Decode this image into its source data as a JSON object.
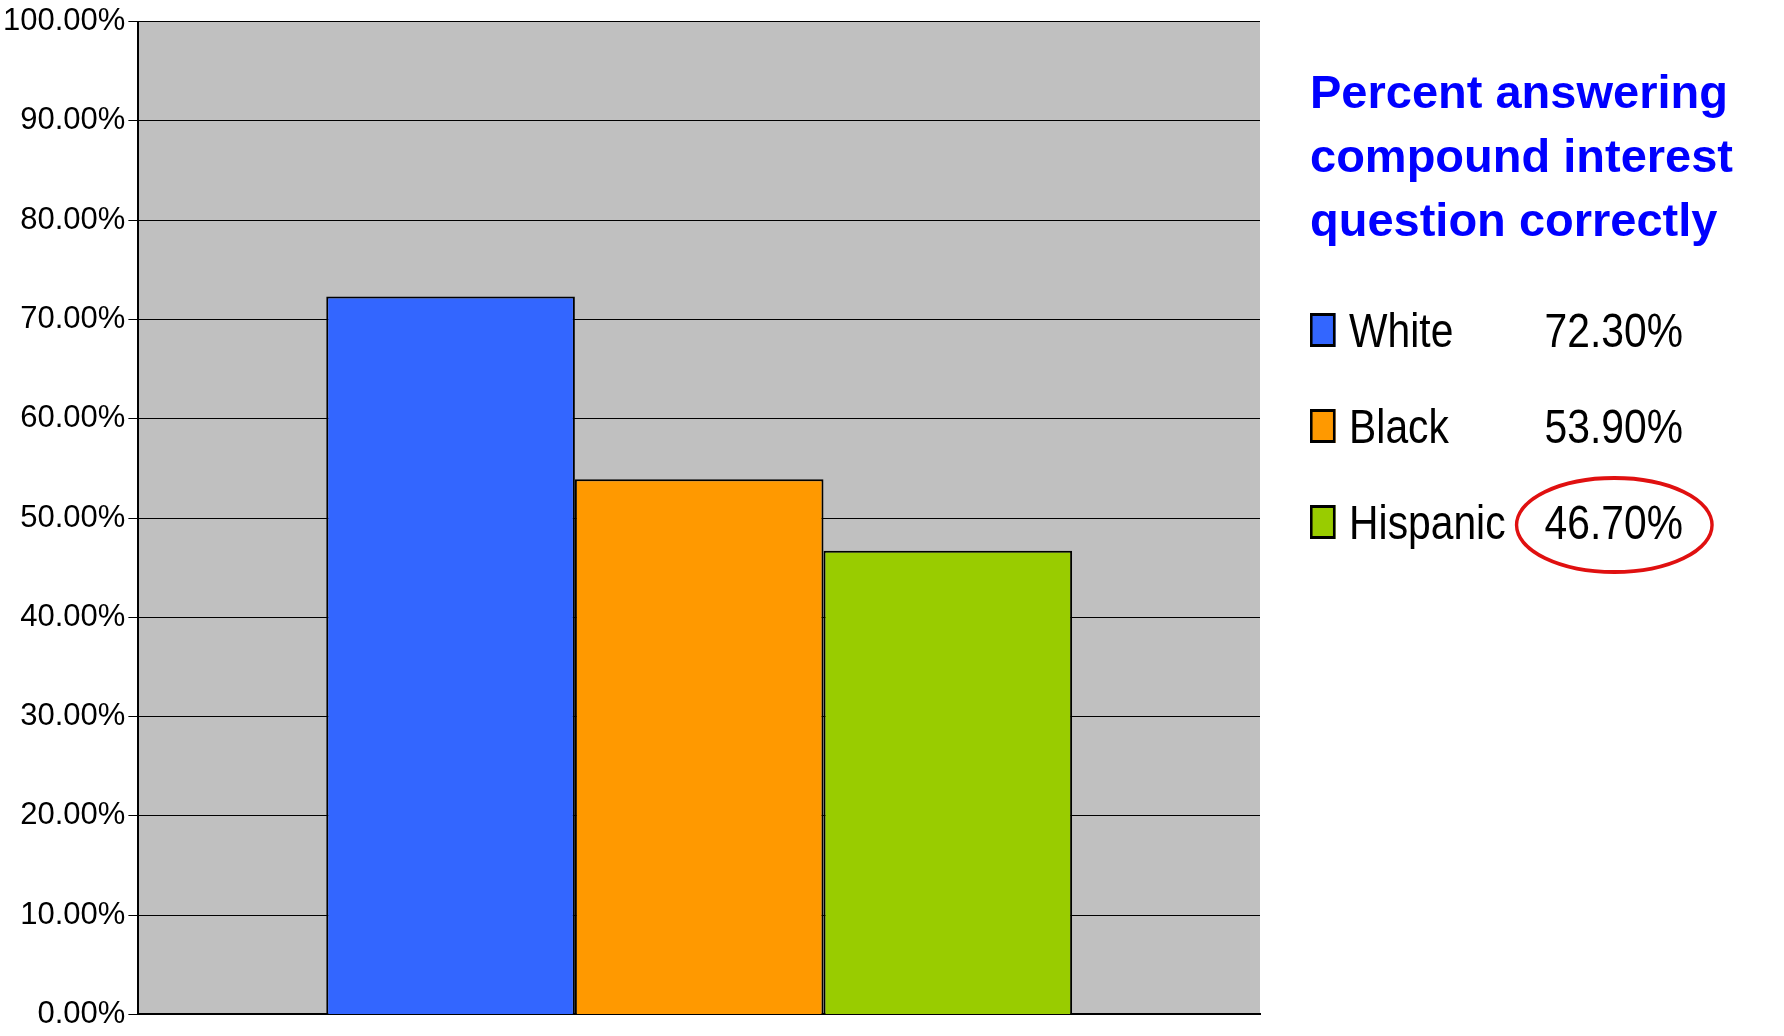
{
  "chart_data": {
    "type": "bar",
    "title": "Percent answering compound interest question correctly",
    "categories": [
      null
    ],
    "series": [
      {
        "name": "White",
        "color": "#3366ff",
        "values": [
          72.3
        ]
      },
      {
        "name": "Black",
        "color": "#ff9900",
        "values": [
          53.9
        ]
      },
      {
        "name": "Hispanic",
        "color": "#99cc00",
        "values": [
          46.7
        ]
      }
    ],
    "annotations": [
      "72.30%",
      "53.90%",
      "46.70%"
    ],
    "ylim": [
      0,
      100
    ],
    "yticks": [
      {
        "value": 0,
        "label": "0.00%"
      },
      {
        "value": 10,
        "label": "10.00%"
      },
      {
        "value": 20,
        "label": "20.00%"
      },
      {
        "value": 30,
        "label": "30.00%"
      },
      {
        "value": 40,
        "label": "40.00%"
      },
      {
        "value": 50,
        "label": "50.00%"
      },
      {
        "value": 60,
        "label": "60.00%"
      },
      {
        "value": 70,
        "label": "70.00%"
      },
      {
        "value": 80,
        "label": "80.00%"
      },
      {
        "value": 90,
        "label": "90.00%"
      },
      {
        "value": 100,
        "label": "100.00%"
      }
    ],
    "grid": "y",
    "legend": "right"
  }
}
